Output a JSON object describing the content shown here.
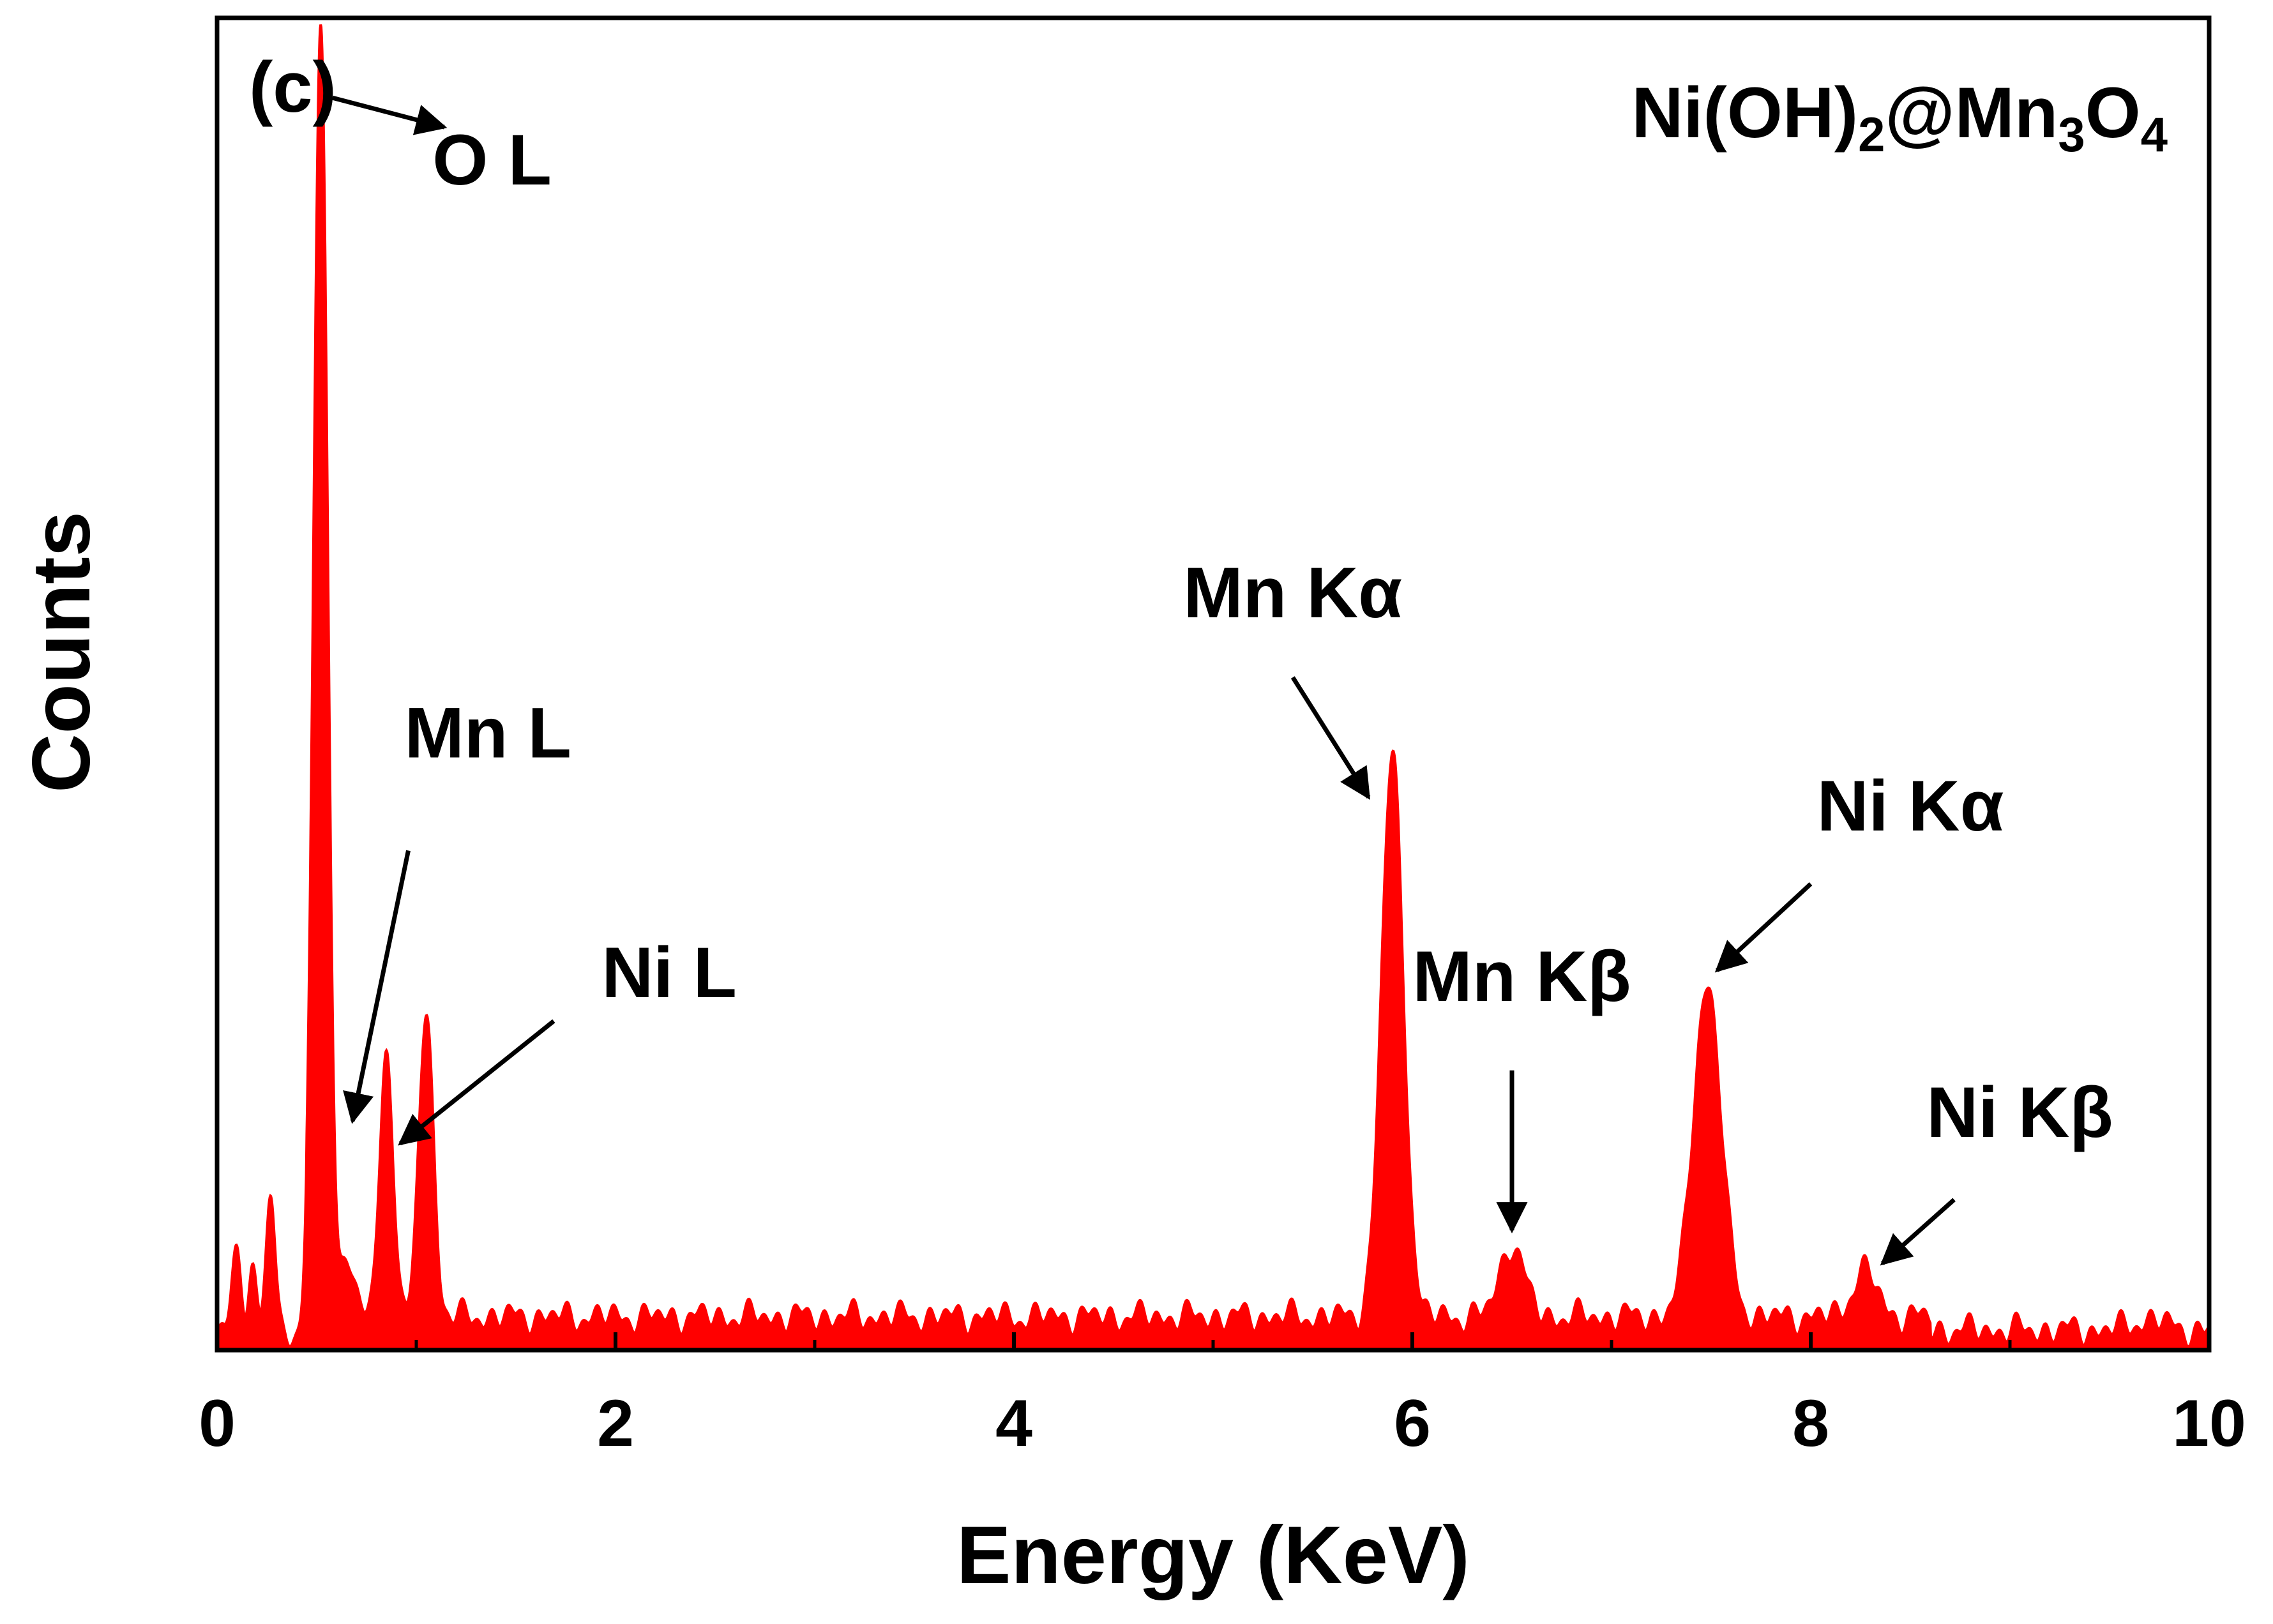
{
  "chart_data": {
    "type": "line",
    "panel_label": "(c)",
    "sample_label": {
      "base": "Ni(OH)",
      "sub1": "2",
      "mid": "@Mn",
      "sub2": "3",
      "tail": "O",
      "sub3": "4"
    },
    "xlabel": "Energy (KeV)",
    "ylabel": "Counts",
    "xlim": [
      0,
      10
    ],
    "ylim": [
      0,
      100
    ],
    "x_ticks": [
      "0",
      "2",
      "4",
      "6",
      "8",
      "10"
    ],
    "x_tick_values": [
      0,
      2,
      4,
      6,
      8,
      10
    ],
    "x_minor_tick_values": [
      1,
      3,
      5,
      7,
      9
    ],
    "y_tick_labels_shown": false,
    "grid": false,
    "baseline": 2.5,
    "series": [
      {
        "color": "#ff0000",
        "peaks": [
          {
            "x": 0.1,
            "height": 6.5,
            "width": 0.025
          },
          {
            "x": 0.18,
            "height": 4.5,
            "width": 0.02
          },
          {
            "x": 0.27,
            "height": 10.5,
            "width": 0.022
          },
          {
            "x": 0.52,
            "height": 97.5,
            "width": 0.035
          },
          {
            "x": 0.65,
            "height": 5.0,
            "width": 0.03
          },
          {
            "x": 0.85,
            "height": 19.5,
            "width": 0.035
          },
          {
            "x": 1.05,
            "height": 23.5,
            "width": 0.035
          },
          {
            "x": 5.9,
            "height": 42.0,
            "width": 0.055
          },
          {
            "x": 6.5,
            "height": 5.5,
            "width": 0.06
          },
          {
            "x": 7.48,
            "height": 25.0,
            "width": 0.07
          },
          {
            "x": 8.27,
            "height": 3.5,
            "width": 0.06
          },
          {
            "x": 9.7,
            "height": 0.8,
            "width": 0.08
          }
        ]
      }
    ],
    "annotations": [
      {
        "text": "O L",
        "peak_x": 0.52,
        "label_x": 1.38,
        "label_y": 87.5,
        "arrow_from": [
          0.58,
          94.0
        ],
        "arrow_to": [
          1.14,
          91.8
        ]
      },
      {
        "text": "Mn L",
        "peak_x": 0.85,
        "label_x": 1.36,
        "label_y": 44.5,
        "arrow_from": [
          0.96,
          37.5
        ],
        "arrow_to": [
          0.68,
          17.2
        ]
      },
      {
        "text": "Ni L",
        "peak_x": 1.05,
        "label_x": 2.27,
        "label_y": 26.5,
        "arrow_from": [
          1.69,
          24.7
        ],
        "arrow_to": [
          0.92,
          15.5
        ]
      },
      {
        "text": "Mn Kα",
        "peak_x": 5.9,
        "label_x": 5.4,
        "label_y": 55.0,
        "arrow_from": [
          5.4,
          50.5
        ],
        "arrow_to": [
          5.78,
          41.5
        ]
      },
      {
        "text": "Mn Kβ",
        "peak_x": 6.5,
        "label_x": 6.55,
        "label_y": 26.2,
        "arrow_from": [
          6.5,
          21.0
        ],
        "arrow_to": [
          6.5,
          9.0
        ]
      },
      {
        "text": "Ni Kα",
        "peak_x": 7.48,
        "label_x": 8.5,
        "label_y": 39.0,
        "arrow_from": [
          8.0,
          35.0
        ],
        "arrow_to": [
          7.53,
          28.5
        ]
      },
      {
        "text": "Ni Kβ",
        "peak_x": 8.27,
        "label_x": 9.05,
        "label_y": 16.0,
        "arrow_from": [
          8.72,
          11.3
        ],
        "arrow_to": [
          8.36,
          6.5
        ]
      }
    ]
  }
}
